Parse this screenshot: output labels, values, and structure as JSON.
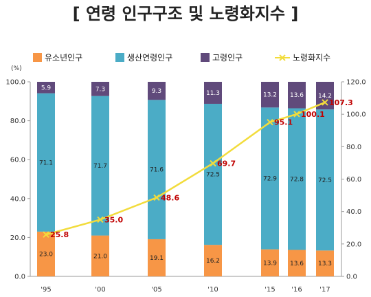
{
  "chart_data": {
    "type": "bar",
    "stacked": true,
    "title": "[ 연령 인구구조 및 노령화지수 ]",
    "categories": [
      "'95",
      "'00",
      "'05",
      "'10",
      "'15",
      "'16",
      "'17"
    ],
    "left_axis": {
      "unit": "(%)",
      "ylim": [
        0,
        100
      ],
      "ticks": [
        "0.0",
        "20.0",
        "40.0",
        "60.0",
        "80.0",
        "100.0"
      ]
    },
    "right_axis": {
      "ylim": [
        0,
        120
      ],
      "ticks": [
        "0.0",
        "20.0",
        "40.0",
        "60.0",
        "80.0",
        "100.0",
        "120.0"
      ]
    },
    "series": [
      {
        "name": "유소년인구",
        "kind": "bar",
        "color": "#f79646",
        "values": [
          23.0,
          21.0,
          19.1,
          16.2,
          13.9,
          13.6,
          13.3
        ],
        "labels": [
          "23.0",
          "21.0",
          "19.1",
          "16.2",
          "13.9",
          "13.6",
          "13.3"
        ]
      },
      {
        "name": "생산연령인구",
        "kind": "bar",
        "color": "#4bacc6",
        "values": [
          71.1,
          71.7,
          71.6,
          72.5,
          72.9,
          72.8,
          72.5
        ],
        "labels": [
          "71.1",
          "71.7",
          "71.6",
          "72.5",
          "72.9",
          "72.8",
          "72.5"
        ]
      },
      {
        "name": "고령인구",
        "kind": "bar",
        "color": "#604a7b",
        "values": [
          5.9,
          7.3,
          9.3,
          11.3,
          13.2,
          13.6,
          14.2
        ],
        "labels": [
          "5.9",
          "7.3",
          "9.3",
          "11.3",
          "13.2",
          "13.6",
          "14.2"
        ]
      },
      {
        "name": "노령화지수",
        "kind": "line",
        "axis": "right",
        "color": "#f2dc3c",
        "values": [
          25.8,
          35.0,
          48.6,
          69.7,
          95.1,
          100.1,
          107.3
        ],
        "labels": [
          "25.8",
          "35.0",
          "48.6",
          "69.7",
          "95.1",
          "100.1",
          "107.3"
        ]
      }
    ],
    "grid": false,
    "legend": "top"
  }
}
